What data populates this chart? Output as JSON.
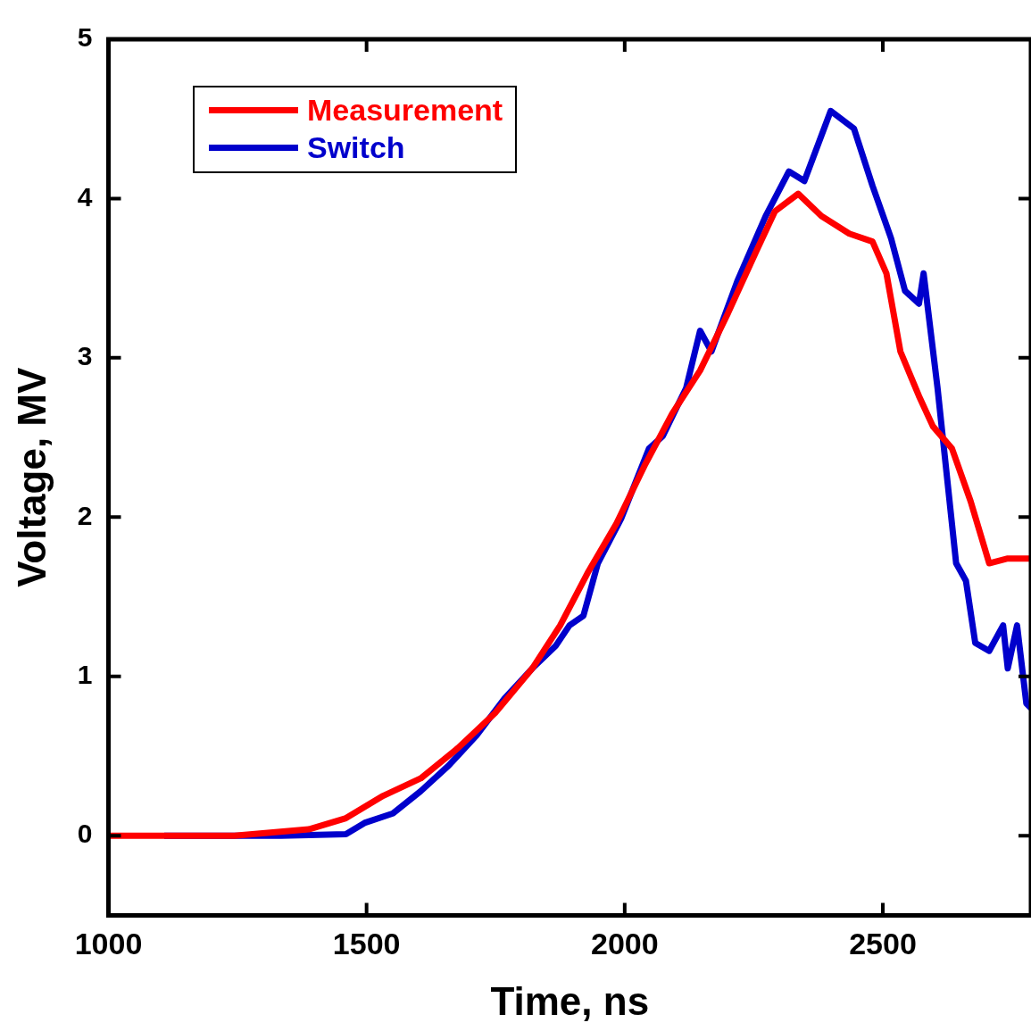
{
  "chart_data": {
    "type": "line",
    "xlabel": "Time, ns",
    "ylabel": "Voltage, MV",
    "xlim": [
      1000,
      2787
    ],
    "xticks": [
      1000,
      1500,
      2000,
      2500
    ],
    "ylim": [
      -0.5,
      5
    ],
    "yticks": [
      0,
      1,
      2,
      3,
      4,
      5
    ],
    "grid": false,
    "legend": "top left",
    "marker": "none",
    "line_style": "solid",
    "series": [
      {
        "name": "Measurement",
        "color": "#ff0000",
        "x": [
          1000,
          1244,
          1388,
          1460,
          1532,
          1605,
          1677,
          1749,
          1821,
          1875,
          1930,
          1984,
          2038,
          2092,
          2146,
          2200,
          2255,
          2291,
          2336,
          2381,
          2435,
          2480,
          2507,
          2534,
          2570,
          2597,
          2634,
          2670,
          2706,
          2742,
          2787
        ],
        "values": [
          0,
          0,
          0.04,
          0.11,
          0.25,
          0.36,
          0.55,
          0.77,
          1.05,
          1.32,
          1.66,
          1.96,
          2.32,
          2.65,
          2.92,
          3.28,
          3.67,
          3.92,
          4.03,
          3.89,
          3.78,
          3.73,
          3.53,
          3.04,
          2.76,
          2.57,
          2.43,
          2.1,
          1.71,
          1.74,
          1.74
        ]
      },
      {
        "name": "Switch",
        "color": "#0000cc",
        "x": [
          1108,
          1334,
          1460,
          1496,
          1551,
          1605,
          1659,
          1713,
          1767,
          1821,
          1866,
          1893,
          1920,
          1948,
          1993,
          2047,
          2074,
          2119,
          2146,
          2168,
          2218,
          2273,
          2318,
          2348,
          2399,
          2444,
          2480,
          2516,
          2543,
          2570,
          2579,
          2606,
          2642,
          2661,
          2679,
          2706,
          2733,
          2742,
          2760,
          2778,
          2787
        ],
        "values": [
          0,
          0,
          0.01,
          0.08,
          0.14,
          0.28,
          0.44,
          0.63,
          0.86,
          1.05,
          1.19,
          1.32,
          1.38,
          1.71,
          1.99,
          2.43,
          2.51,
          2.81,
          3.17,
          3.04,
          3.48,
          3.89,
          4.17,
          4.11,
          4.55,
          4.44,
          4.08,
          3.75,
          3.42,
          3.34,
          3.53,
          2.81,
          1.71,
          1.6,
          1.21,
          1.16,
          1.32,
          1.05,
          1.32,
          0.83,
          0.8
        ]
      }
    ]
  }
}
